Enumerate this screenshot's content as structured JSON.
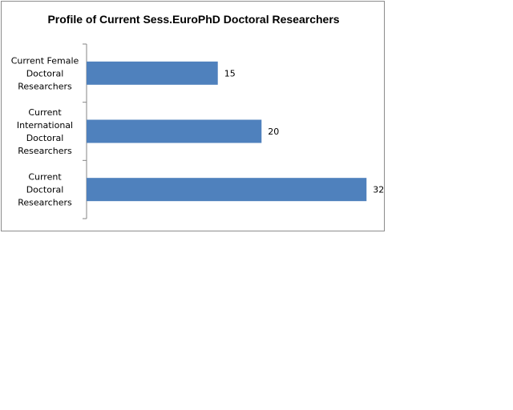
{
  "chart_data": {
    "type": "bar",
    "orientation": "horizontal",
    "title": "Profile of Current Sess.EuroPhD Doctoral Researchers",
    "categories": [
      [
        "Current Female",
        "Doctoral",
        "Researchers"
      ],
      [
        "Current",
        "International",
        "Doctoral",
        "Researchers"
      ],
      [
        "Current",
        "Doctoral",
        "Researchers"
      ]
    ],
    "values": [
      15,
      20,
      32
    ],
    "data_labels": [
      "15",
      "20",
      "32"
    ],
    "xlim": [
      0,
      35
    ],
    "grid": false,
    "legend": "none",
    "bar_color": "#4F81BD"
  }
}
